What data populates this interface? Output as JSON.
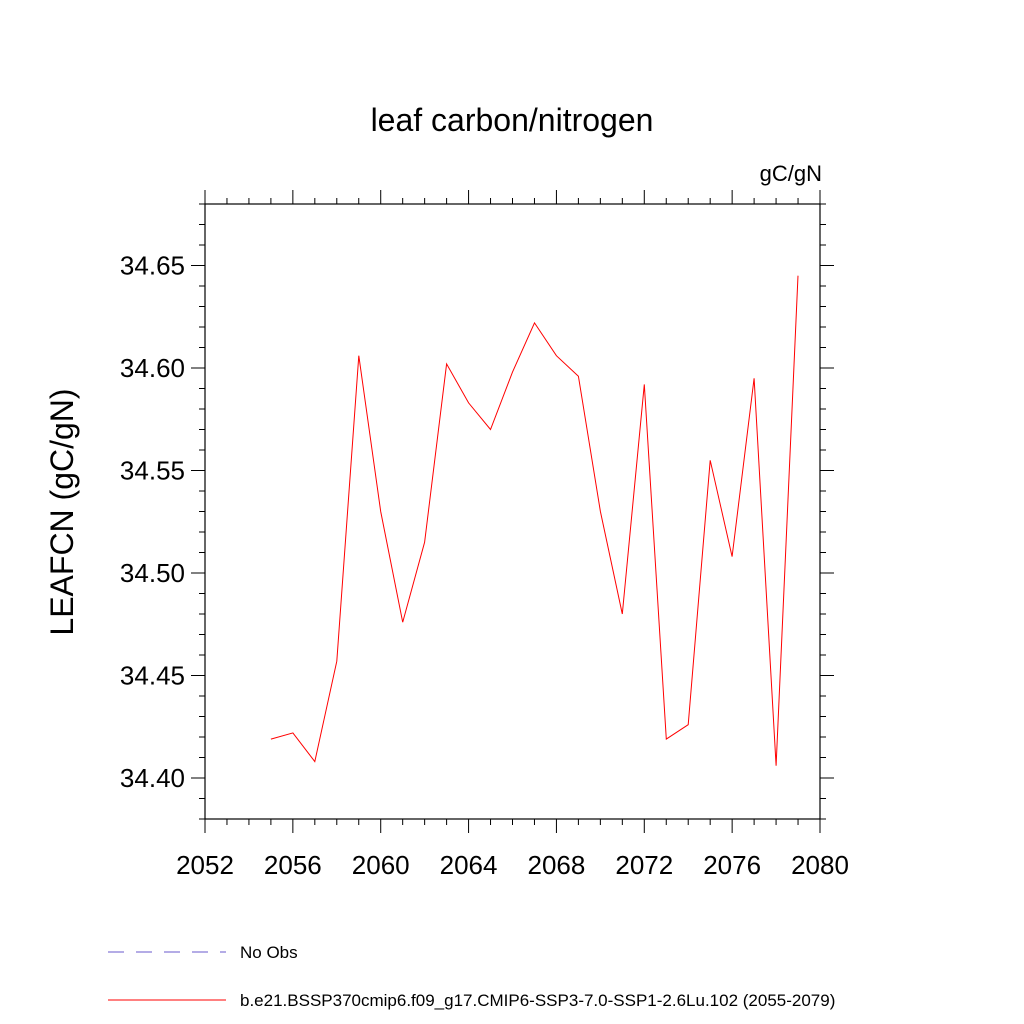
{
  "chart_data": {
    "type": "line",
    "title": "leaf carbon/nitrogen",
    "units_label": "gC/gN",
    "ylabel": "LEAFCN  (gC/gN)",
    "xlabel": "",
    "xlim": [
      2052,
      2080
    ],
    "ylim": [
      34.38,
      34.68
    ],
    "x_ticks": [
      2052,
      2056,
      2060,
      2064,
      2068,
      2072,
      2076,
      2080
    ],
    "x_tick_labels": [
      "2052",
      "2056",
      "2060",
      "2064",
      "2068",
      "2072",
      "2076",
      "2080"
    ],
    "y_ticks": [
      34.4,
      34.45,
      34.5,
      34.55,
      34.6,
      34.65
    ],
    "y_tick_labels": [
      "34.40",
      "34.45",
      "34.50",
      "34.55",
      "34.60",
      "34.65"
    ],
    "grid": false,
    "series": [
      {
        "name": "b.e21.BSSP370cmip6.f09_g17.CMIP6-SSP3-7.0-SSP1-2.6Lu.102 (2055-2079)",
        "color": "#ff0000",
        "style": "solid",
        "x": [
          2055,
          2056,
          2057,
          2058,
          2059,
          2060,
          2061,
          2062,
          2063,
          2064,
          2065,
          2066,
          2067,
          2068,
          2069,
          2070,
          2071,
          2072,
          2073,
          2074,
          2075,
          2076,
          2077,
          2078,
          2079
        ],
        "y": [
          34.419,
          34.422,
          34.408,
          34.457,
          34.606,
          34.53,
          34.476,
          34.515,
          34.602,
          34.583,
          34.57,
          34.598,
          34.622,
          34.606,
          34.596,
          34.53,
          34.48,
          34.592,
          34.419,
          34.426,
          34.555,
          34.508,
          34.595,
          34.406,
          34.645
        ]
      }
    ],
    "legend": [
      {
        "label": "No Obs",
        "color": "#6a5acd",
        "style": "dashed"
      },
      {
        "label": "b.e21.BSSP370cmip6.f09_g17.CMIP6-SSP3-7.0-SSP1-2.6Lu.102 (2055-2079)",
        "color": "#ff0000",
        "style": "solid"
      }
    ],
    "legend_position": "bottom-left"
  }
}
